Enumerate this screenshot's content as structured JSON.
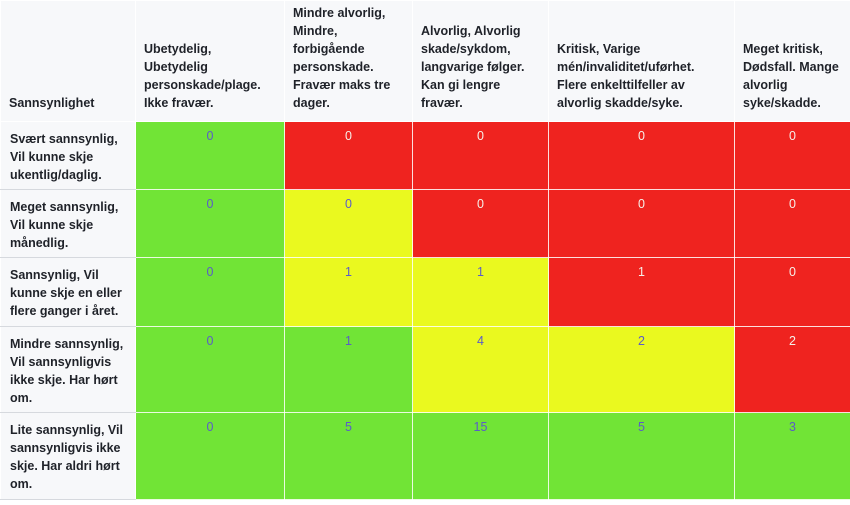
{
  "matrix": {
    "corner_header": "Sannsynlighet",
    "columns": [
      "Ubetydelig, Ubetydelig personskade/plage. Ikke fravær.",
      "Mindre alvorlig, Mindre, forbigående personskade. Fravær maks tre dager.",
      "Alvorlig, Alvorlig skade/sykdom, langvarige følger. Kan gi lengre fravær.",
      "Kritisk, Varige mén/invaliditet/uførhet. Flere enkelttilfeller av alvorlig skadde/syke.",
      "Meget kritisk, Dødsfall. Mange alvorlig syke/skadde."
    ],
    "rows": [
      {
        "label": "Svært sannsynlig, Vil kunne skje ukentlig/daglig.",
        "values": [
          "0",
          "0",
          "0",
          "0",
          "0"
        ],
        "levels": [
          "green",
          "red",
          "red",
          "red",
          "red"
        ]
      },
      {
        "label": "Meget sannsynlig, Vil kunne skje månedlig.",
        "values": [
          "0",
          "0",
          "0",
          "0",
          "0"
        ],
        "levels": [
          "green",
          "yellow",
          "red",
          "red",
          "red"
        ]
      },
      {
        "label": "Sannsynlig, Vil kunne skje en eller flere ganger i året.",
        "values": [
          "0",
          "1",
          "1",
          "1",
          "0"
        ],
        "levels": [
          "green",
          "yellow",
          "yellow",
          "red",
          "red"
        ]
      },
      {
        "label": "Mindre sannsynlig, Vil sannsynligvis ikke skje. Har hørt om.",
        "values": [
          "0",
          "1",
          "4",
          "2",
          "2"
        ],
        "levels": [
          "green",
          "green",
          "yellow",
          "yellow",
          "red"
        ]
      },
      {
        "label": "Lite sannsynlig, Vil sannsynligvis ikke skje. Har aldri hørt om.",
        "values": [
          "0",
          "5",
          "15",
          "5",
          "3"
        ],
        "levels": [
          "green",
          "green",
          "green",
          "green",
          "green"
        ]
      }
    ],
    "colors": {
      "green": "#71e436",
      "yellow": "#eaf91f",
      "red": "#ef231f"
    }
  }
}
